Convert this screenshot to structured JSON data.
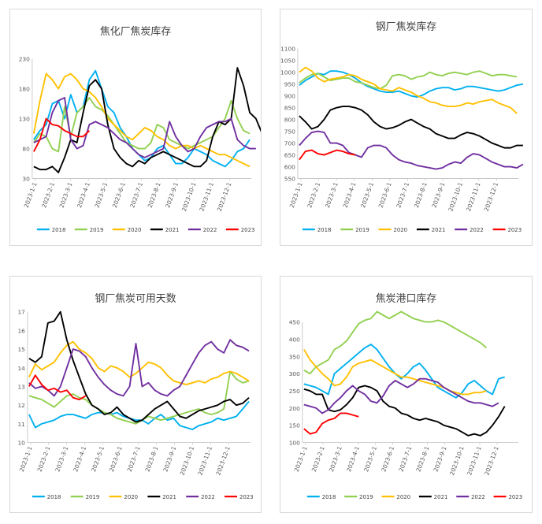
{
  "chart_data": [
    {
      "type": "line",
      "title": "焦化厂焦炭库存",
      "ylim": [
        30,
        230
      ],
      "yticks": [
        30,
        80,
        130,
        180,
        230
      ],
      "xticks": [
        "2023-1-1",
        "2023-2-1",
        "2023-3-1",
        "2023-4-1",
        "2023-5-1",
        "2023-6-1",
        "2023-7-1",
        "2023-8-1",
        "2023-9-1",
        "2023-10-1",
        "2023-11-1",
        "2023-12-1"
      ],
      "legend_position": "bottom",
      "grid": false,
      "series": [
        {
          "name": "2018",
          "color": "#00b0f0",
          "values": [
            95,
            110,
            120,
            155,
            160,
            130,
            170,
            140,
            150,
            195,
            210,
            180,
            150,
            140,
            115,
            100,
            80,
            70,
            60,
            65,
            80,
            85,
            70,
            55,
            55,
            65,
            80,
            75,
            70,
            60,
            55,
            50,
            60,
            75,
            80,
            95
          ]
        },
        {
          "name": "2019",
          "color": "#92d050",
          "values": [
            90,
            105,
            100,
            80,
            75,
            150,
            100,
            140,
            150,
            165,
            150,
            145,
            135,
            120,
            105,
            90,
            85,
            80,
            80,
            90,
            120,
            115,
            95,
            90,
            85,
            80,
            85,
            90,
            95,
            100,
            115,
            130,
            160,
            130,
            110,
            105
          ]
        },
        {
          "name": "2020",
          "color": "#ffc000",
          "values": [
            105,
            160,
            205,
            195,
            180,
            200,
            205,
            195,
            180,
            175,
            165,
            150,
            130,
            120,
            110,
            100,
            95,
            105,
            115,
            110,
            100,
            95,
            85,
            80,
            85,
            85,
            80,
            85,
            80,
            75,
            70,
            70,
            65,
            60,
            55,
            50
          ]
        },
        {
          "name": "2021",
          "color": "#000000",
          "values": [
            50,
            45,
            45,
            50,
            40,
            65,
            95,
            90,
            140,
            185,
            195,
            180,
            120,
            80,
            65,
            55,
            50,
            60,
            55,
            65,
            70,
            75,
            70,
            65,
            60,
            55,
            50,
            50,
            60,
            100,
            125,
            120,
            130,
            215,
            185,
            140,
            130,
            105
          ]
        },
        {
          "name": "2022",
          "color": "#7030a0",
          "values": [
            90,
            95,
            100,
            140,
            160,
            165,
            95,
            80,
            85,
            120,
            125,
            120,
            115,
            105,
            95,
            90,
            80,
            70,
            65,
            70,
            75,
            80,
            125,
            100,
            85,
            75,
            80,
            100,
            115,
            120,
            125,
            125,
            130,
            95,
            85,
            80,
            80
          ]
        },
        {
          "name": "2023",
          "color": "#ff0000",
          "values": [
            75,
            95,
            130,
            120,
            118,
            110,
            105,
            100,
            100,
            110
          ]
        }
      ]
    },
    {
      "type": "line",
      "title": "钢厂焦炭库存",
      "ylim": [
        550,
        1100
      ],
      "yticks": [
        550,
        600,
        650,
        700,
        750,
        800,
        850,
        900,
        950,
        1000,
        1050,
        1100
      ],
      "xticks": [
        "2023-1-1",
        "2023-2-1",
        "2023-3-1",
        "2023-4-1",
        "2023-5-1",
        "2023-6-1",
        "2023-7-1",
        "2023-8-1",
        "2023-9-1",
        "2023-10-1",
        "2023-11-1",
        "2023-12-1"
      ],
      "legend_position": "bottom",
      "grid": false,
      "series": [
        {
          "name": "2018",
          "color": "#00b0f0",
          "values": [
            945,
            965,
            980,
            995,
            990,
            1005,
            1005,
            1000,
            990,
            975,
            955,
            940,
            930,
            920,
            915,
            915,
            920,
            910,
            900,
            895,
            905,
            920,
            930,
            935,
            935,
            925,
            930,
            940,
            940,
            935,
            930,
            925,
            920,
            925,
            935,
            945,
            950
          ]
        },
        {
          "name": "2019",
          "color": "#92d050",
          "values": [
            955,
            975,
            990,
            995,
            980,
            965,
            970,
            975,
            975,
            960,
            955,
            945,
            935,
            930,
            945,
            985,
            990,
            985,
            970,
            980,
            985,
            1000,
            990,
            985,
            995,
            1000,
            995,
            990,
            1000,
            1005,
            995,
            985,
            990,
            990,
            985,
            980
          ]
        },
        {
          "name": "2020",
          "color": "#ffc000",
          "values": [
            1000,
            1020,
            1005,
            975,
            960,
            970,
            975,
            980,
            990,
            985,
            970,
            960,
            950,
            930,
            925,
            920,
            935,
            925,
            915,
            900,
            890,
            875,
            870,
            860,
            855,
            855,
            860,
            870,
            865,
            875,
            880,
            885,
            870,
            860,
            850,
            825
          ]
        },
        {
          "name": "2021",
          "color": "#000000",
          "values": [
            815,
            790,
            760,
            770,
            800,
            840,
            850,
            855,
            855,
            850,
            840,
            820,
            790,
            770,
            760,
            765,
            775,
            790,
            800,
            785,
            770,
            760,
            740,
            730,
            720,
            720,
            735,
            745,
            740,
            730,
            715,
            700,
            690,
            680,
            680,
            690,
            690
          ]
        },
        {
          "name": "2022",
          "color": "#7030a0",
          "values": [
            690,
            720,
            745,
            750,
            745,
            700,
            700,
            690,
            660,
            650,
            640,
            680,
            690,
            690,
            680,
            650,
            630,
            620,
            615,
            605,
            600,
            595,
            590,
            595,
            610,
            620,
            615,
            640,
            655,
            650,
            635,
            620,
            610,
            600,
            600,
            595,
            610
          ]
        },
        {
          "name": "2023",
          "color": "#ff0000",
          "values": [
            630,
            665,
            670,
            655,
            650,
            660,
            670,
            665,
            655,
            650
          ]
        }
      ]
    },
    {
      "type": "line",
      "title": "钢厂焦炭可用天数",
      "ylim": [
        10,
        17
      ],
      "yticks": [
        10,
        11,
        12,
        13,
        14,
        15,
        16,
        17
      ],
      "xticks": [
        "2023-1-1",
        "2023-2-1",
        "2023-3-1",
        "2023-4-1",
        "2023-5-1",
        "2023-6-1",
        "2023-7-1",
        "2023-8-1",
        "2023-9-1",
        "2023-10-1",
        "2023-11-1",
        "2023-12-1"
      ],
      "legend_position": "bottom",
      "grid": false,
      "series": [
        {
          "name": "2018",
          "color": "#00b0f0",
          "values": [
            11.5,
            10.8,
            11.0,
            11.1,
            11.2,
            11.4,
            11.5,
            11.5,
            11.4,
            11.3,
            11.5,
            11.6,
            11.6,
            11.5,
            11.6,
            11.4,
            11.3,
            11.2,
            11.2,
            11.0,
            11.3,
            11.5,
            11.2,
            11.3,
            10.9,
            10.8,
            10.7,
            10.9,
            11.0,
            11.1,
            11.3,
            11.2,
            11.3,
            11.4,
            11.8,
            12.2
          ]
        },
        {
          "name": "2019",
          "color": "#92d050",
          "values": [
            12.5,
            12.4,
            12.3,
            12.1,
            11.9,
            12.2,
            12.5,
            12.6,
            12.4,
            12.3,
            12.0,
            11.8,
            11.6,
            11.5,
            11.3,
            11.2,
            11.1,
            11.0,
            11.2,
            11.4,
            11.3,
            11.2,
            11.3,
            11.4,
            11.5,
            11.6,
            11.7,
            11.8,
            11.6,
            11.5,
            11.6,
            11.8,
            13.8,
            13.4,
            13.2,
            13.3
          ]
        },
        {
          "name": "2020",
          "color": "#ffc000",
          "values": [
            13.5,
            14.2,
            13.9,
            14.1,
            14.3,
            14.8,
            15.2,
            15.4,
            15.0,
            14.8,
            14.5,
            14.0,
            13.8,
            14.1,
            14.0,
            13.8,
            13.5,
            13.7,
            14.0,
            14.3,
            14.2,
            14.0,
            13.6,
            13.3,
            13.2,
            13.1,
            13.2,
            13.3,
            13.2,
            13.4,
            13.5,
            13.7,
            13.8,
            13.7,
            13.5,
            13.3
          ]
        },
        {
          "name": "2021",
          "color": "#000000",
          "values": [
            14.5,
            14.3,
            14.6,
            16.4,
            16.5,
            17.0,
            15.5,
            14.4,
            13.5,
            12.6,
            12.0,
            11.8,
            11.5,
            11.6,
            11.9,
            11.5,
            11.3,
            11.1,
            11.2,
            11.5,
            11.8,
            12.0,
            12.2,
            11.8,
            11.4,
            11.3,
            11.5,
            11.7,
            11.8,
            11.9,
            12.0,
            12.2,
            12.3,
            12.0,
            12.1,
            12.4
          ]
        },
        {
          "name": "2022",
          "color": "#7030a0",
          "values": [
            13.2,
            12.9,
            13.0,
            12.8,
            12.5,
            13.0,
            14.0,
            15.0,
            14.9,
            14.6,
            14.0,
            13.5,
            13.1,
            12.8,
            12.6,
            12.5,
            13.0,
            15.3,
            13.0,
            13.2,
            12.8,
            12.6,
            12.5,
            12.8,
            13.0,
            13.6,
            14.2,
            14.8,
            15.2,
            15.4,
            15.0,
            14.8,
            15.5,
            15.2,
            15.1,
            14.9
          ]
        },
        {
          "name": "2023",
          "color": "#ff0000",
          "values": [
            13.0,
            13.6,
            13.1,
            12.8,
            12.9,
            12.7,
            12.8,
            12.4,
            12.3,
            12.5
          ]
        }
      ]
    },
    {
      "type": "line",
      "title": "焦炭港口库存",
      "ylim": [
        100,
        450
      ],
      "yticks": [
        100,
        150,
        200,
        250,
        300,
        350,
        400,
        450
      ],
      "xticks": [
        "2023-1-1",
        "2023-2-1",
        "2023-3-1",
        "2023-4-1",
        "2023-5-1",
        "2023-6-1",
        "2023-7-1",
        "2023-8-1",
        "2023-9-1",
        "2023-10-1",
        "2023-11-1",
        "2023-12-1"
      ],
      "legend_position": "bottom",
      "grid": false,
      "series": [
        {
          "name": "2018",
          "color": "#00b0f0",
          "values": [
            270,
            265,
            260,
            250,
            240,
            300,
            315,
            330,
            345,
            360,
            375,
            385,
            370,
            345,
            320,
            300,
            285,
            300,
            320,
            330,
            310,
            285,
            260,
            250,
            240,
            230,
            245,
            270,
            280,
            265,
            250,
            240,
            285,
            290
          ]
        },
        {
          "name": "2019",
          "color": "#92d050",
          "values": [
            310,
            300,
            320,
            330,
            340,
            370,
            380,
            395,
            420,
            445,
            455,
            460,
            480,
            470,
            460,
            470,
            480,
            470,
            460,
            455,
            450,
            450,
            455,
            450,
            440,
            430,
            420,
            410,
            400,
            390,
            375
          ]
        },
        {
          "name": "2020",
          "color": "#ffc000",
          "values": [
            370,
            340,
            320,
            300,
            285,
            265,
            270,
            290,
            320,
            330,
            335,
            340,
            330,
            320,
            310,
            300,
            290,
            290,
            285,
            280,
            275,
            270,
            265,
            260,
            250,
            245,
            240,
            240,
            245,
            245,
            250
          ]
        },
        {
          "name": "2021",
          "color": "#000000",
          "values": [
            255,
            250,
            240,
            240,
            195,
            190,
            195,
            210,
            230,
            260,
            265,
            260,
            250,
            220,
            205,
            200,
            185,
            180,
            170,
            165,
            170,
            165,
            160,
            150,
            145,
            140,
            130,
            120,
            125,
            120,
            130,
            150,
            175,
            205
          ]
        },
        {
          "name": "2022",
          "color": "#7030a0",
          "values": [
            210,
            205,
            200,
            185,
            195,
            215,
            230,
            250,
            265,
            250,
            240,
            220,
            215,
            235,
            265,
            280,
            270,
            260,
            270,
            285,
            285,
            280,
            275,
            260,
            250,
            240,
            230,
            220,
            215,
            215,
            210,
            205,
            215
          ]
        },
        {
          "name": "2023",
          "color": "#ff0000",
          "values": [
            140,
            125,
            130,
            155,
            165,
            170,
            185,
            185,
            180,
            175
          ]
        }
      ]
    }
  ]
}
